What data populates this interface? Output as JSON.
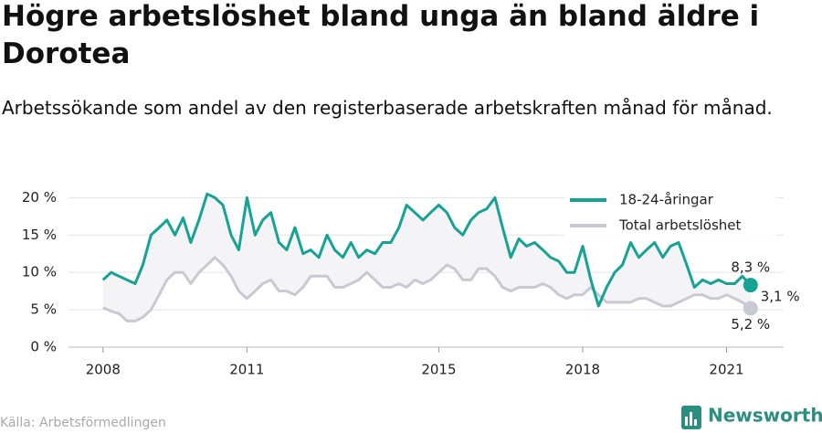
{
  "chart_data": {
    "type": "line",
    "title": "Högre arbetslöshet bland unga än bland äldre i Dorotea",
    "subtitle": "Arbetssökande som andel av den registerbaserade arbetskraften månad för månad.",
    "source": "Källa: Arbetsförmedlingen",
    "logo": "Newsworthy",
    "difference_label": "3,1 %",
    "x": [
      2008.0,
      2008.17,
      2008.33,
      2008.5,
      2008.67,
      2008.83,
      2009.0,
      2009.17,
      2009.33,
      2009.5,
      2009.67,
      2009.83,
      2010.0,
      2010.17,
      2010.33,
      2010.5,
      2010.67,
      2010.83,
      2011.0,
      2011.17,
      2011.33,
      2011.5,
      2011.67,
      2011.83,
      2012.0,
      2012.17,
      2012.33,
      2012.5,
      2012.67,
      2012.83,
      2013.0,
      2013.17,
      2013.33,
      2013.5,
      2013.67,
      2013.83,
      2014.0,
      2014.17,
      2014.33,
      2014.5,
      2014.67,
      2014.83,
      2015.0,
      2015.17,
      2015.33,
      2015.5,
      2015.67,
      2015.83,
      2016.0,
      2016.17,
      2016.33,
      2016.5,
      2016.67,
      2016.83,
      2017.0,
      2017.17,
      2017.33,
      2017.5,
      2017.67,
      2017.83,
      2018.0,
      2018.17,
      2018.33,
      2018.5,
      2018.67,
      2018.83,
      2019.0,
      2019.17,
      2019.33,
      2019.5,
      2019.67,
      2019.83,
      2020.0,
      2020.17,
      2020.33,
      2020.5,
      2020.67,
      2020.83,
      2021.0,
      2021.17,
      2021.33,
      2021.5
    ],
    "series": [
      {
        "name": "18-24-åringar",
        "color": "#16a394",
        "values": [
          9,
          10,
          9.5,
          9,
          8.5,
          11,
          15,
          16,
          17,
          15,
          17.3,
          14,
          17,
          20.5,
          20,
          19,
          15,
          13,
          20,
          15,
          17,
          18,
          14,
          13,
          16,
          12.5,
          13,
          12,
          15,
          13,
          12,
          14,
          12,
          13,
          12.5,
          14,
          14,
          16,
          19,
          18,
          17,
          18,
          19,
          18,
          16,
          15,
          17,
          18,
          18.5,
          20,
          16,
          12,
          14.5,
          13.5,
          14,
          13,
          12,
          11.5,
          10,
          10,
          13.5,
          9,
          5.5,
          8,
          10,
          11,
          14,
          12,
          13,
          14,
          12,
          13.5,
          14,
          11,
          8,
          9,
          8.5,
          9,
          8.5,
          8.5,
          9.5,
          8.3
        ],
        "value_labels": {
          "81": "8,3 %"
        }
      },
      {
        "name": "Total arbetslöshet",
        "color": "#c9c9d3",
        "values": [
          5.3,
          4.8,
          4.5,
          3.5,
          3.5,
          4,
          5,
          7,
          9,
          10,
          10,
          8.5,
          10,
          11,
          12,
          11,
          9.5,
          7.5,
          6.5,
          7.5,
          8.5,
          9,
          7.5,
          7.5,
          7,
          8,
          9.5,
          9.5,
          9.5,
          8,
          8,
          8.5,
          9,
          10,
          9,
          8,
          8,
          8.5,
          8,
          9,
          8.5,
          9,
          10,
          11,
          10.5,
          9,
          9,
          10.5,
          10.5,
          9.5,
          8,
          7.5,
          8,
          8,
          8,
          8.5,
          8,
          7,
          6.5,
          7,
          7,
          8,
          7,
          6,
          6,
          6,
          6,
          6.5,
          6.5,
          6,
          5.5,
          5.5,
          6,
          6.5,
          7,
          7,
          6.5,
          6.5,
          7,
          6.5,
          6,
          5.2
        ],
        "value_labels": {
          "81": "5,2 %"
        }
      }
    ],
    "xlim": [
      2007.28,
      2022.19
    ],
    "xticks": [
      2008,
      2011,
      2015,
      2018,
      2021
    ],
    "ylim": [
      0,
      22
    ],
    "yticks": [
      {
        "value": 0,
        "label": "0 %"
      },
      {
        "value": 5,
        "label": "5 %"
      },
      {
        "value": 10,
        "label": "10 %"
      },
      {
        "value": 15,
        "label": "15 %"
      },
      {
        "value": 20,
        "label": "20 %"
      }
    ],
    "grid": true,
    "legend": "top-right"
  }
}
